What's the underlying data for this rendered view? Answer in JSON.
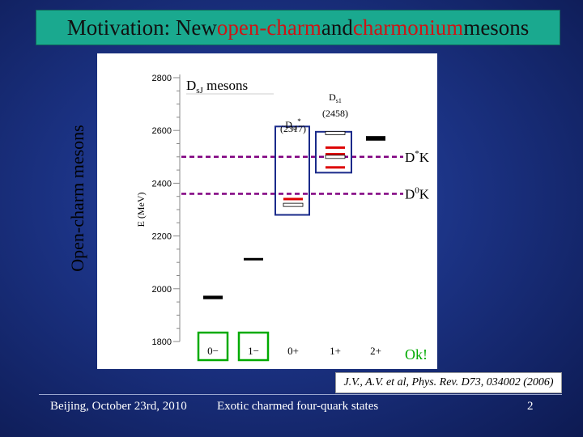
{
  "title": {
    "part1": "Motivation: New ",
    "part2": "open-charm",
    "part3": " and ",
    "part4": "charmonium",
    "part5": " mesons"
  },
  "side_label": "Open-charm mesons",
  "footer": {
    "left": "Beijing, October 23rd, 2010",
    "center": "Exotic charmed four-quark states",
    "page": "2"
  },
  "citation": "J.V., A.V. et al, Phys. Rev. D73, 034002 (2006)",
  "colors": {
    "title_bg": "#1aa98f",
    "red": "#dd0000",
    "threshold": "#800080",
    "box": "#1a2a8a",
    "ok": "#00aa00"
  },
  "chart_data": {
    "type": "level diagram",
    "ylabel": "E (MeV)",
    "ylim": [
      1800,
      2800
    ],
    "yticks": [
      1800,
      2000,
      2200,
      2400,
      2600,
      2800
    ],
    "categories": [
      "0−",
      "1−",
      "0+",
      "1+",
      "2+"
    ],
    "header_label": "D",
    "header_sub": "sJ",
    "header_suffix": " mesons",
    "thresholds": [
      {
        "label": "D*K",
        "energy": 2500
      },
      {
        "label": "D0K",
        "energy": 2360
      }
    ],
    "levels": [
      {
        "cat": 0,
        "energy": 1969,
        "style": "black"
      },
      {
        "cat": 0,
        "energy": 1965,
        "style": "black"
      },
      {
        "cat": 1,
        "energy": 2112,
        "style": "black"
      },
      {
        "cat": 2,
        "energy": 2340,
        "style": "red"
      },
      {
        "cat": 2,
        "energy": 2318,
        "style": "outline"
      },
      {
        "cat": 3,
        "energy": 2535,
        "style": "red"
      },
      {
        "cat": 3,
        "energy": 2510,
        "style": "red"
      },
      {
        "cat": 3,
        "energy": 2460,
        "style": "red"
      },
      {
        "cat": 3,
        "energy": 2590,
        "style": "outline"
      },
      {
        "cat": 3,
        "energy": 2500,
        "style": "outline"
      },
      {
        "cat": 4,
        "energy": 2574,
        "style": "black"
      },
      {
        "cat": 4,
        "energy": 2566,
        "style": "black"
      }
    ],
    "annotations": [
      {
        "label": "D",
        "sub": "sJ",
        "sup": "*",
        "line2": "(2317)",
        "cat": 2
      },
      {
        "label": "D",
        "sub": "s1",
        "sup": "",
        "line2": "(2458)",
        "cat": 3
      }
    ],
    "highlighted": [
      0,
      1
    ],
    "ok_label": "Ok!"
  }
}
